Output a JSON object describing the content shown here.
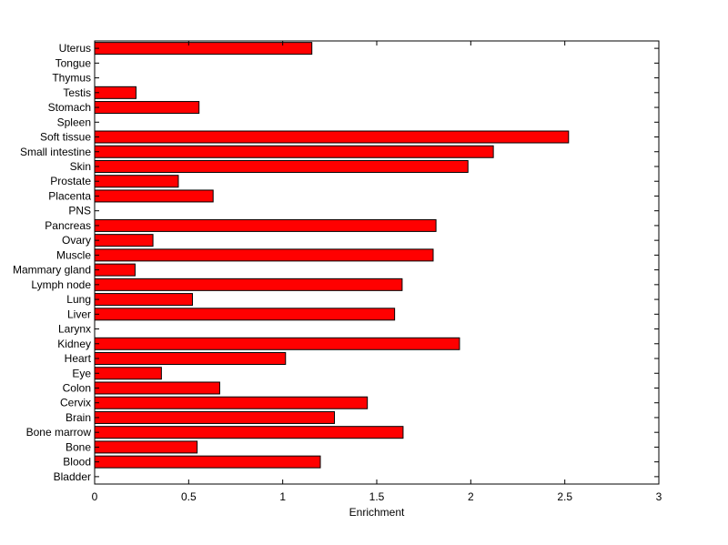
{
  "chart_data": {
    "type": "bar",
    "orientation": "horizontal",
    "xlabel": "Enrichment",
    "ylabel": "",
    "title": "",
    "xlim": [
      0,
      3
    ],
    "xticks": [
      0,
      0.5,
      1,
      1.5,
      2,
      2.5,
      3
    ],
    "xtick_labels": [
      "0",
      "0.5",
      "1",
      "1.5",
      "2",
      "2.5",
      "3"
    ],
    "grid": false,
    "bar_color": "#ff0000",
    "categories": [
      "Bladder",
      "Blood",
      "Bone",
      "Bone marrow",
      "Brain",
      "Cervix",
      "Colon",
      "Eye",
      "Heart",
      "Kidney",
      "Larynx",
      "Liver",
      "Lung",
      "Lymph node",
      "Mammary gland",
      "Muscle",
      "Ovary",
      "Pancreas",
      "PNS",
      "Placenta",
      "Prostate",
      "Skin",
      "Small intestine",
      "Soft tissue",
      "Spleen",
      "Stomach",
      "Testis",
      "Thymus",
      "Tongue",
      "Uterus"
    ],
    "values": [
      0,
      1.2,
      0.545,
      1.64,
      1.275,
      1.45,
      0.665,
      0.355,
      1.015,
      1.94,
      0,
      1.595,
      0.52,
      1.635,
      0.215,
      1.8,
      0.31,
      1.815,
      0,
      0.63,
      0.445,
      1.985,
      2.12,
      2.52,
      0,
      0.555,
      0.22,
      0,
      0,
      1.155
    ]
  }
}
